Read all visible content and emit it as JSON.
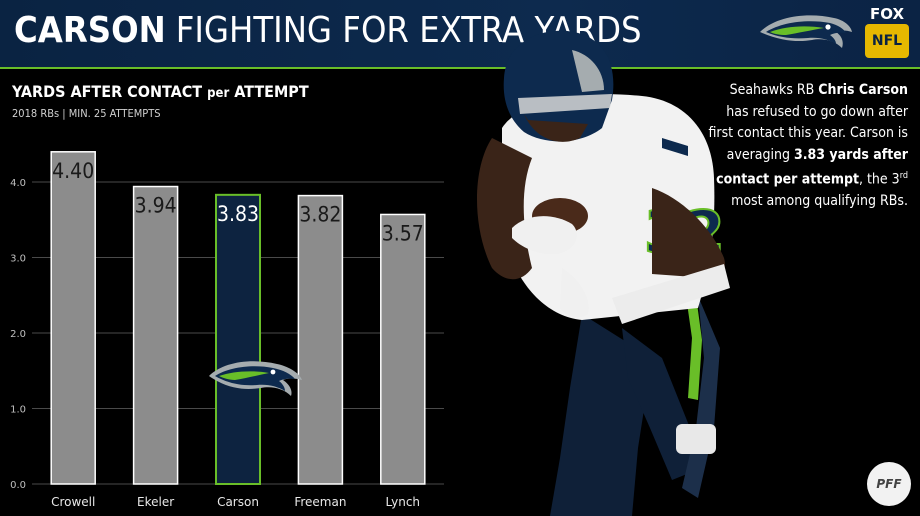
{
  "header": {
    "title_strong": "CARSON",
    "title_rest": "FIGHTING FOR EXTRA YARDS",
    "network": {
      "fox": "FOX",
      "nfl": "NFL"
    }
  },
  "chart_title": {
    "main": "YARDS AFTER CONTACT",
    "connector": "per",
    "end": "ATTEMPT"
  },
  "chart_subtitle": "2018 RBs | MIN. 25 ATTEMPTS",
  "description": {
    "p1": "Seahawks RB ",
    "name": "Chris Carson",
    "p2": " has refused to go down after first contact this year. Carson is averaging ",
    "stat": "3.83 yards after contact per attempt",
    "p3": ", the 3",
    "sup": "rd",
    "p4": " most among qualifying RBs."
  },
  "brand": {
    "pff": "PFF"
  },
  "colors": {
    "navy": "#0a2342",
    "green": "#69be28",
    "bar": "#8c8c8c",
    "highlight": "#0d2340"
  },
  "chart_data": {
    "type": "bar",
    "categories": [
      "Crowell",
      "Ekeler",
      "Carson",
      "Freeman",
      "Lynch"
    ],
    "values": [
      4.4,
      3.94,
      3.83,
      3.82,
      3.57
    ],
    "value_labels": [
      "4.40",
      "3.94",
      "3.83",
      "3.82",
      "3.57"
    ],
    "highlight": "Carson",
    "ylim": [
      0,
      4.4
    ],
    "yticks": [
      "0.0",
      "1.0",
      "2.0",
      "3.0",
      "4.0"
    ],
    "grid": true,
    "title": "YARDS AFTER CONTACT per ATTEMPT",
    "xlabel": "",
    "ylabel": ""
  }
}
